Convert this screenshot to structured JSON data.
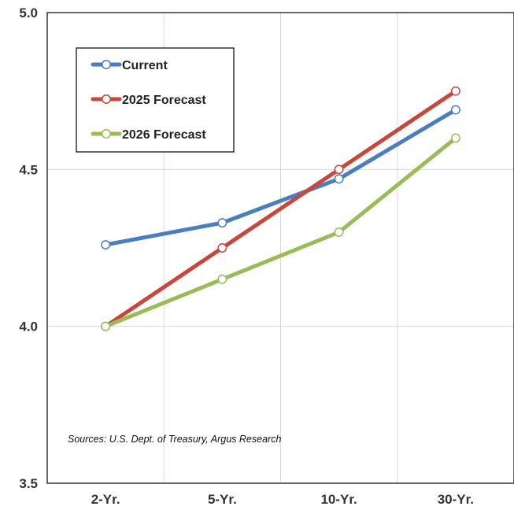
{
  "chart_data": {
    "type": "line",
    "categories": [
      "2-Yr.",
      "5-Yr.",
      "10-Yr.",
      "30-Yr."
    ],
    "series": [
      {
        "name": "Current",
        "values": [
          4.26,
          4.33,
          4.47,
          4.69
        ],
        "color": "#4a7ebf"
      },
      {
        "name": "2025 Forecast",
        "values": [
          4.0,
          4.25,
          4.5,
          4.75
        ],
        "color": "#c9463d"
      },
      {
        "name": "2026 Forecast",
        "values": [
          4.0,
          4.15,
          4.3,
          4.6
        ],
        "color": "#9bbb59"
      }
    ],
    "ylim": [
      3.5,
      5.0
    ],
    "yticks": [
      "3.5",
      "4.0",
      "4.5",
      "5.0"
    ],
    "grid": true,
    "legend_position": "top-left",
    "annotation": "Sources: U.S. Dept. of Treasury, Argus Research"
  }
}
